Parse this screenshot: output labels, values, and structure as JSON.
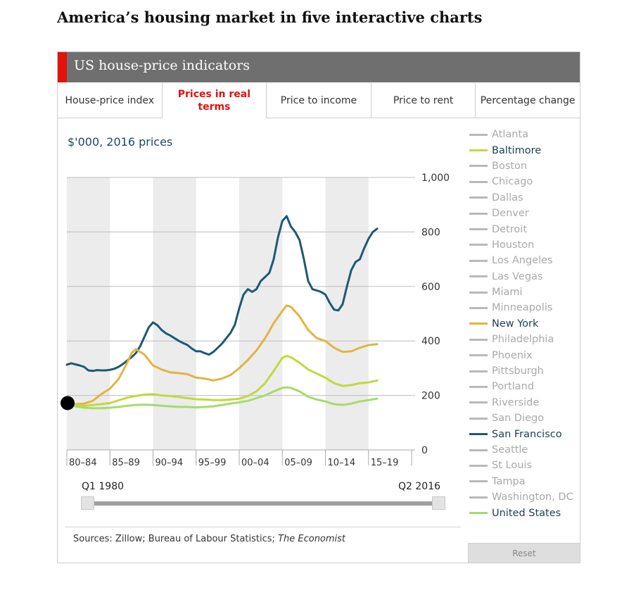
{
  "page": {
    "title": "America’s housing market in five interactive charts"
  },
  "widget": {
    "title": "US house-price indicators",
    "tabs": [
      {
        "label": "House-price index",
        "active": false
      },
      {
        "label": "Prices in real terms",
        "active": true
      },
      {
        "label": "Price to income",
        "active": false
      },
      {
        "label": "Price to rent",
        "active": false
      },
      {
        "label": "Percentage change",
        "active": false
      }
    ],
    "unit_label": "$'000, 2016 prices",
    "range": {
      "start": "Q1 1980",
      "end": "Q2 2016"
    },
    "sources": {
      "text": "Sources: Zillow; Bureau of Labour Statistics; ",
      "italic": "The Economist"
    },
    "reset_label": "Reset",
    "colors": {
      "accent": "#e3120b",
      "header": "#6f6f6f",
      "band": "#ececec",
      "grid": "#bdbdbd"
    }
  },
  "chart_data": {
    "type": "line",
    "unit": "$'000, 2016 prices",
    "xlim": [
      1980,
      2020
    ],
    "ylim": [
      0,
      1000
    ],
    "y_ticks": [
      {
        "value": 0,
        "label": "0"
      },
      {
        "value": 200,
        "label": "200"
      },
      {
        "value": 400,
        "label": "400"
      },
      {
        "value": 600,
        "label": "600"
      },
      {
        "value": 800,
        "label": "800"
      },
      {
        "value": 1000,
        "label": "1,000"
      }
    ],
    "x_ticks": [
      {
        "start": 1980,
        "label": "80–84"
      },
      {
        "start": 1985,
        "label": "85–89"
      },
      {
        "start": 1990,
        "label": "90–94"
      },
      {
        "start": 1995,
        "label": "95–99"
      },
      {
        "start": 2000,
        "label": "00–04"
      },
      {
        "start": 2005,
        "label": "05–09"
      },
      {
        "start": 2010,
        "label": "10–14"
      },
      {
        "start": 2015,
        "label": "15–19"
      }
    ],
    "grid": true,
    "legend_position": "right",
    "series": [
      {
        "name": "San Francisco",
        "color": "#1b5a72",
        "points": [
          [
            1980,
            313
          ],
          [
            1980.5,
            318
          ],
          [
            1981,
            314
          ],
          [
            1981.5,
            310
          ],
          [
            1982,
            305
          ],
          [
            1982.5,
            292
          ],
          [
            1983,
            290
          ],
          [
            1983.5,
            293
          ],
          [
            1984,
            292
          ],
          [
            1984.5,
            292
          ],
          [
            1985,
            294
          ],
          [
            1985.5,
            298
          ],
          [
            1986,
            305
          ],
          [
            1986.5,
            315
          ],
          [
            1987,
            328
          ],
          [
            1987.5,
            340
          ],
          [
            1988,
            355
          ],
          [
            1988.5,
            380
          ],
          [
            1989,
            415
          ],
          [
            1989.5,
            450
          ],
          [
            1990,
            468
          ],
          [
            1990.5,
            458
          ],
          [
            1991,
            440
          ],
          [
            1991.5,
            428
          ],
          [
            1992,
            420
          ],
          [
            1992.5,
            410
          ],
          [
            1993,
            400
          ],
          [
            1993.5,
            392
          ],
          [
            1994,
            385
          ],
          [
            1994.5,
            372
          ],
          [
            1995,
            362
          ],
          [
            1995.5,
            362
          ],
          [
            1996,
            355
          ],
          [
            1996.5,
            350
          ],
          [
            1997,
            360
          ],
          [
            1997.5,
            375
          ],
          [
            1998,
            390
          ],
          [
            1998.5,
            410
          ],
          [
            1999,
            430
          ],
          [
            1999.5,
            460
          ],
          [
            2000,
            520
          ],
          [
            2000.5,
            570
          ],
          [
            2001,
            590
          ],
          [
            2001.5,
            580
          ],
          [
            2002,
            590
          ],
          [
            2002.5,
            620
          ],
          [
            2003,
            635
          ],
          [
            2003.5,
            650
          ],
          [
            2004,
            700
          ],
          [
            2004.5,
            780
          ],
          [
            2005,
            840
          ],
          [
            2005.5,
            858
          ],
          [
            2006,
            820
          ],
          [
            2006.5,
            800
          ],
          [
            2007,
            770
          ],
          [
            2007.5,
            700
          ],
          [
            2008,
            620
          ],
          [
            2008.5,
            590
          ],
          [
            2009,
            585
          ],
          [
            2009.5,
            580
          ],
          [
            2010,
            570
          ],
          [
            2010.5,
            540
          ],
          [
            2011,
            515
          ],
          [
            2011.5,
            512
          ],
          [
            2012,
            535
          ],
          [
            2012.5,
            600
          ],
          [
            2013,
            660
          ],
          [
            2013.5,
            690
          ],
          [
            2014,
            700
          ],
          [
            2014.5,
            740
          ],
          [
            2015,
            775
          ],
          [
            2015.5,
            800
          ],
          [
            2016,
            812
          ]
        ]
      },
      {
        "name": "New York",
        "color": "#e2b441",
        "points": [
          [
            1980,
            170
          ],
          [
            1981,
            168
          ],
          [
            1982,
            170
          ],
          [
            1983,
            180
          ],
          [
            1984,
            205
          ],
          [
            1985,
            225
          ],
          [
            1986,
            260
          ],
          [
            1987,
            320
          ],
          [
            1987.5,
            355
          ],
          [
            1988,
            370
          ],
          [
            1988.5,
            360
          ],
          [
            1989,
            350
          ],
          [
            1989.5,
            330
          ],
          [
            1990,
            310
          ],
          [
            1991,
            295
          ],
          [
            1992,
            285
          ],
          [
            1993,
            282
          ],
          [
            1994,
            278
          ],
          [
            1995,
            265
          ],
          [
            1996,
            262
          ],
          [
            1997,
            255
          ],
          [
            1998,
            262
          ],
          [
            1999,
            275
          ],
          [
            2000,
            300
          ],
          [
            2001,
            330
          ],
          [
            2002,
            365
          ],
          [
            2003,
            410
          ],
          [
            2004,
            465
          ],
          [
            2005,
            510
          ],
          [
            2005.5,
            530
          ],
          [
            2006,
            525
          ],
          [
            2007,
            490
          ],
          [
            2008,
            440
          ],
          [
            2009,
            410
          ],
          [
            2010,
            400
          ],
          [
            2011,
            375
          ],
          [
            2012,
            360
          ],
          [
            2013,
            362
          ],
          [
            2014,
            375
          ],
          [
            2015,
            385
          ],
          [
            2016,
            388
          ]
        ]
      },
      {
        "name": "Baltimore",
        "color": "#c3d840",
        "points": [
          [
            1980,
            180
          ],
          [
            1981,
            165
          ],
          [
            1982,
            162
          ],
          [
            1983,
            165
          ],
          [
            1984,
            168
          ],
          [
            1985,
            172
          ],
          [
            1986,
            182
          ],
          [
            1987,
            192
          ],
          [
            1988,
            198
          ],
          [
            1989,
            203
          ],
          [
            1990,
            205
          ],
          [
            1991,
            200
          ],
          [
            1992,
            198
          ],
          [
            1993,
            194
          ],
          [
            1994,
            190
          ],
          [
            1995,
            186
          ],
          [
            1996,
            185
          ],
          [
            1997,
            183
          ],
          [
            1998,
            183
          ],
          [
            1999,
            185
          ],
          [
            2000,
            188
          ],
          [
            2001,
            198
          ],
          [
            2002,
            215
          ],
          [
            2003,
            245
          ],
          [
            2004,
            290
          ],
          [
            2005,
            338
          ],
          [
            2005.5,
            345
          ],
          [
            2006,
            340
          ],
          [
            2007,
            320
          ],
          [
            2008,
            295
          ],
          [
            2009,
            280
          ],
          [
            2010,
            265
          ],
          [
            2011,
            245
          ],
          [
            2012,
            235
          ],
          [
            2013,
            238
          ],
          [
            2014,
            245
          ],
          [
            2015,
            248
          ],
          [
            2016,
            255
          ]
        ]
      },
      {
        "name": "United States",
        "color": "#a5dc6c",
        "points": [
          [
            1980,
            165
          ],
          [
            1981,
            160
          ],
          [
            1982,
            155
          ],
          [
            1983,
            153
          ],
          [
            1984,
            153
          ],
          [
            1985,
            155
          ],
          [
            1986,
            158
          ],
          [
            1987,
            162
          ],
          [
            1988,
            165
          ],
          [
            1989,
            166
          ],
          [
            1990,
            165
          ],
          [
            1991,
            162
          ],
          [
            1992,
            160
          ],
          [
            1993,
            158
          ],
          [
            1994,
            158
          ],
          [
            1995,
            156
          ],
          [
            1996,
            158
          ],
          [
            1997,
            160
          ],
          [
            1998,
            165
          ],
          [
            1999,
            170
          ],
          [
            2000,
            175
          ],
          [
            2001,
            180
          ],
          [
            2002,
            190
          ],
          [
            2003,
            200
          ],
          [
            2004,
            215
          ],
          [
            2005,
            228
          ],
          [
            2005.5,
            230
          ],
          [
            2006,
            228
          ],
          [
            2007,
            215
          ],
          [
            2008,
            195
          ],
          [
            2009,
            185
          ],
          [
            2010,
            178
          ],
          [
            2011,
            168
          ],
          [
            2012,
            165
          ],
          [
            2013,
            170
          ],
          [
            2014,
            178
          ],
          [
            2015,
            183
          ],
          [
            2016,
            188
          ]
        ]
      }
    ],
    "marker": {
      "x": 1980,
      "y": 172
    }
  },
  "legend": {
    "items": [
      {
        "name": "Atlanta",
        "on": false,
        "color": "#b9b9b9"
      },
      {
        "name": "Baltimore",
        "on": true,
        "color": "#c3d840"
      },
      {
        "name": "Boston",
        "on": false,
        "color": "#b9b9b9"
      },
      {
        "name": "Chicago",
        "on": false,
        "color": "#b9b9b9"
      },
      {
        "name": "Dallas",
        "on": false,
        "color": "#b9b9b9"
      },
      {
        "name": "Denver",
        "on": false,
        "color": "#b9b9b9"
      },
      {
        "name": "Detroit",
        "on": false,
        "color": "#b9b9b9"
      },
      {
        "name": "Houston",
        "on": false,
        "color": "#b9b9b9"
      },
      {
        "name": "Los Angeles",
        "on": false,
        "color": "#b9b9b9"
      },
      {
        "name": "Las Vegas",
        "on": false,
        "color": "#b9b9b9"
      },
      {
        "name": "Miami",
        "on": false,
        "color": "#b9b9b9"
      },
      {
        "name": "Minneapolis",
        "on": false,
        "color": "#b9b9b9"
      },
      {
        "name": "New York",
        "on": true,
        "color": "#e2b441"
      },
      {
        "name": "Philadelphia",
        "on": false,
        "color": "#b9b9b9"
      },
      {
        "name": "Phoenix",
        "on": false,
        "color": "#b9b9b9"
      },
      {
        "name": "Pittsburgh",
        "on": false,
        "color": "#b9b9b9"
      },
      {
        "name": "Portland",
        "on": false,
        "color": "#b9b9b9"
      },
      {
        "name": "Riverside",
        "on": false,
        "color": "#b9b9b9"
      },
      {
        "name": "San Diego",
        "on": false,
        "color": "#b9b9b9"
      },
      {
        "name": "San Francisco",
        "on": true,
        "color": "#1b5a72"
      },
      {
        "name": "Seattle",
        "on": false,
        "color": "#b9b9b9"
      },
      {
        "name": "St Louis",
        "on": false,
        "color": "#b9b9b9"
      },
      {
        "name": "Tampa",
        "on": false,
        "color": "#b9b9b9"
      },
      {
        "name": "Washington, DC",
        "on": false,
        "color": "#b9b9b9"
      },
      {
        "name": "United States",
        "on": true,
        "color": "#a5dc6c"
      }
    ]
  }
}
